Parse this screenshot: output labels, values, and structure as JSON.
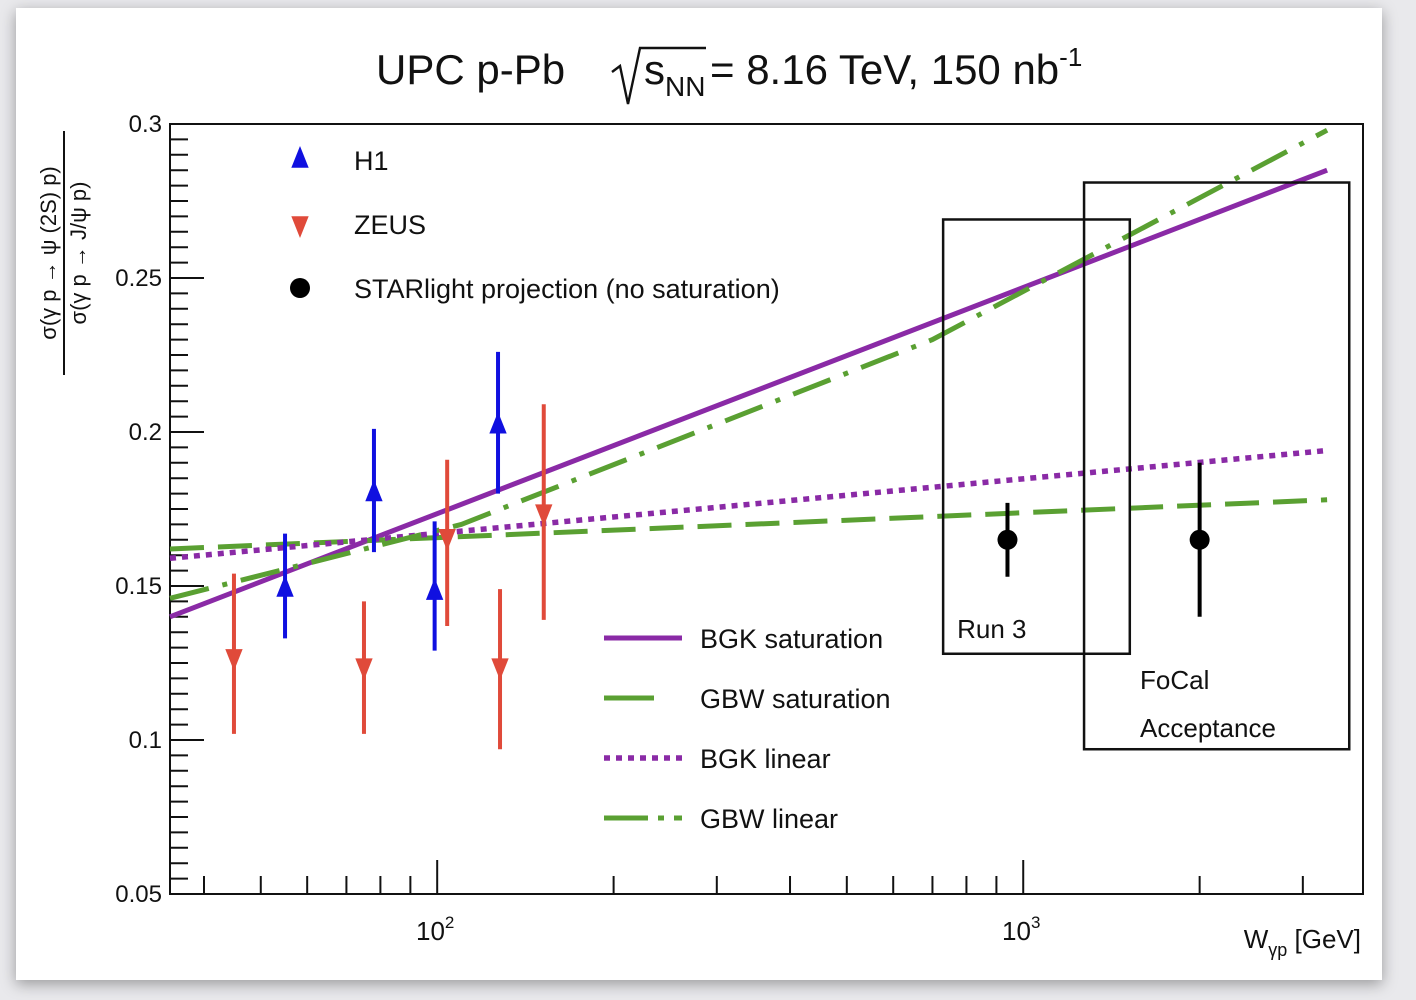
{
  "chart_data": {
    "type": "scatter",
    "title": {
      "prefix": "UPC p-Pb ",
      "sqrt_s": "s",
      "sqrt_s_sub": "NN",
      "suffix": " = 8.16 TeV, 150 nb",
      "sup": "-1"
    },
    "xlabel": {
      "main": "W",
      "sub": "γp",
      "unit": " [GeV]"
    },
    "ylabel": {
      "numerator": "σ(γ p → ψ (2S) p)",
      "denominator": "σ(γ p → J/ψ p)"
    },
    "x_scale": "log",
    "xlim": [
      35,
      3800
    ],
    "ylim": [
      0.05,
      0.3
    ],
    "y_ticks": [
      {
        "v": 0.05,
        "label": "0.05"
      },
      {
        "v": 0.1,
        "label": "0.1"
      },
      {
        "v": 0.15,
        "label": "0.15"
      },
      {
        "v": 0.2,
        "label": "0.2"
      },
      {
        "v": 0.25,
        "label": "0.25"
      },
      {
        "v": 0.3,
        "label": "0.3"
      }
    ],
    "x_major_ticks": [
      {
        "v": 100,
        "base": "10",
        "exp": "2"
      },
      {
        "v": 1000,
        "base": "10",
        "exp": "3"
      }
    ],
    "legend_top": [
      {
        "label": "H1",
        "marker": "triangle-up",
        "color": "#1010e0"
      },
      {
        "label": "ZEUS",
        "marker": "triangle-down",
        "color": "#e04a3a"
      },
      {
        "label": "STARlight projection (no saturation)",
        "marker": "circle",
        "color": "#000000"
      }
    ],
    "legend_bottom": [
      {
        "label": "BGK saturation",
        "style": "solid",
        "color": "#8a2aa6"
      },
      {
        "label": "GBW saturation",
        "style": "dashed",
        "color": "#5aa032"
      },
      {
        "label": "BGK linear",
        "style": "dotted",
        "color": "#8a2aa6"
      },
      {
        "label": "GBW linear",
        "style": "dashdot",
        "color": "#5aa032"
      }
    ],
    "series": [
      {
        "name": "H1",
        "marker": "triangle-up",
        "color": "#1010e0",
        "points": [
          {
            "x": 55,
            "y": 0.149,
            "lo": 0.133,
            "hi": 0.167
          },
          {
            "x": 78,
            "y": 0.18,
            "lo": 0.161,
            "hi": 0.201
          },
          {
            "x": 99,
            "y": 0.148,
            "lo": 0.129,
            "hi": 0.171
          },
          {
            "x": 127,
            "y": 0.202,
            "lo": 0.18,
            "hi": 0.226
          }
        ]
      },
      {
        "name": "ZEUS",
        "marker": "triangle-down",
        "color": "#e04a3a",
        "points": [
          {
            "x": 45,
            "y": 0.127,
            "lo": 0.102,
            "hi": 0.154
          },
          {
            "x": 75,
            "y": 0.124,
            "lo": 0.102,
            "hi": 0.145
          },
          {
            "x": 104,
            "y": 0.166,
            "lo": 0.137,
            "hi": 0.191
          },
          {
            "x": 128,
            "y": 0.124,
            "lo": 0.097,
            "hi": 0.149
          },
          {
            "x": 152,
            "y": 0.174,
            "lo": 0.139,
            "hi": 0.209
          }
        ]
      },
      {
        "name": "STARlight projection (no saturation)",
        "marker": "circle",
        "color": "#000000",
        "points": [
          {
            "x": 940,
            "y": 0.165,
            "lo": 0.153,
            "hi": 0.177
          },
          {
            "x": 2000,
            "y": 0.165,
            "lo": 0.14,
            "hi": 0.19
          }
        ]
      }
    ],
    "curves": [
      {
        "name": "BGK saturation",
        "style": "solid",
        "color": "#8a2aa6",
        "x": [
          35,
          3300
        ],
        "y": [
          0.14,
          0.285
        ]
      },
      {
        "name": "GBW saturation",
        "style": "dashed",
        "color": "#5aa032",
        "x": [
          35,
          3300
        ],
        "y": [
          0.162,
          0.178
        ]
      },
      {
        "name": "BGK linear",
        "style": "dotted",
        "color": "#8a2aa6",
        "x": [
          35,
          3300
        ],
        "y": [
          0.159,
          0.194
        ]
      },
      {
        "name": "GBW linear",
        "style": "dashdot",
        "color": "#5aa032",
        "x": [
          35,
          110,
          700,
          3300
        ],
        "y": [
          0.146,
          0.17,
          0.23,
          0.298
        ]
      }
    ],
    "boxes": [
      {
        "label": [
          "Run 3"
        ],
        "x": [
          730,
          1520
        ],
        "y": [
          0.128,
          0.269
        ]
      },
      {
        "label": [
          "FoCal",
          "Acceptance"
        ],
        "x": [
          1270,
          3600
        ],
        "y": [
          0.097,
          0.281
        ]
      }
    ]
  }
}
